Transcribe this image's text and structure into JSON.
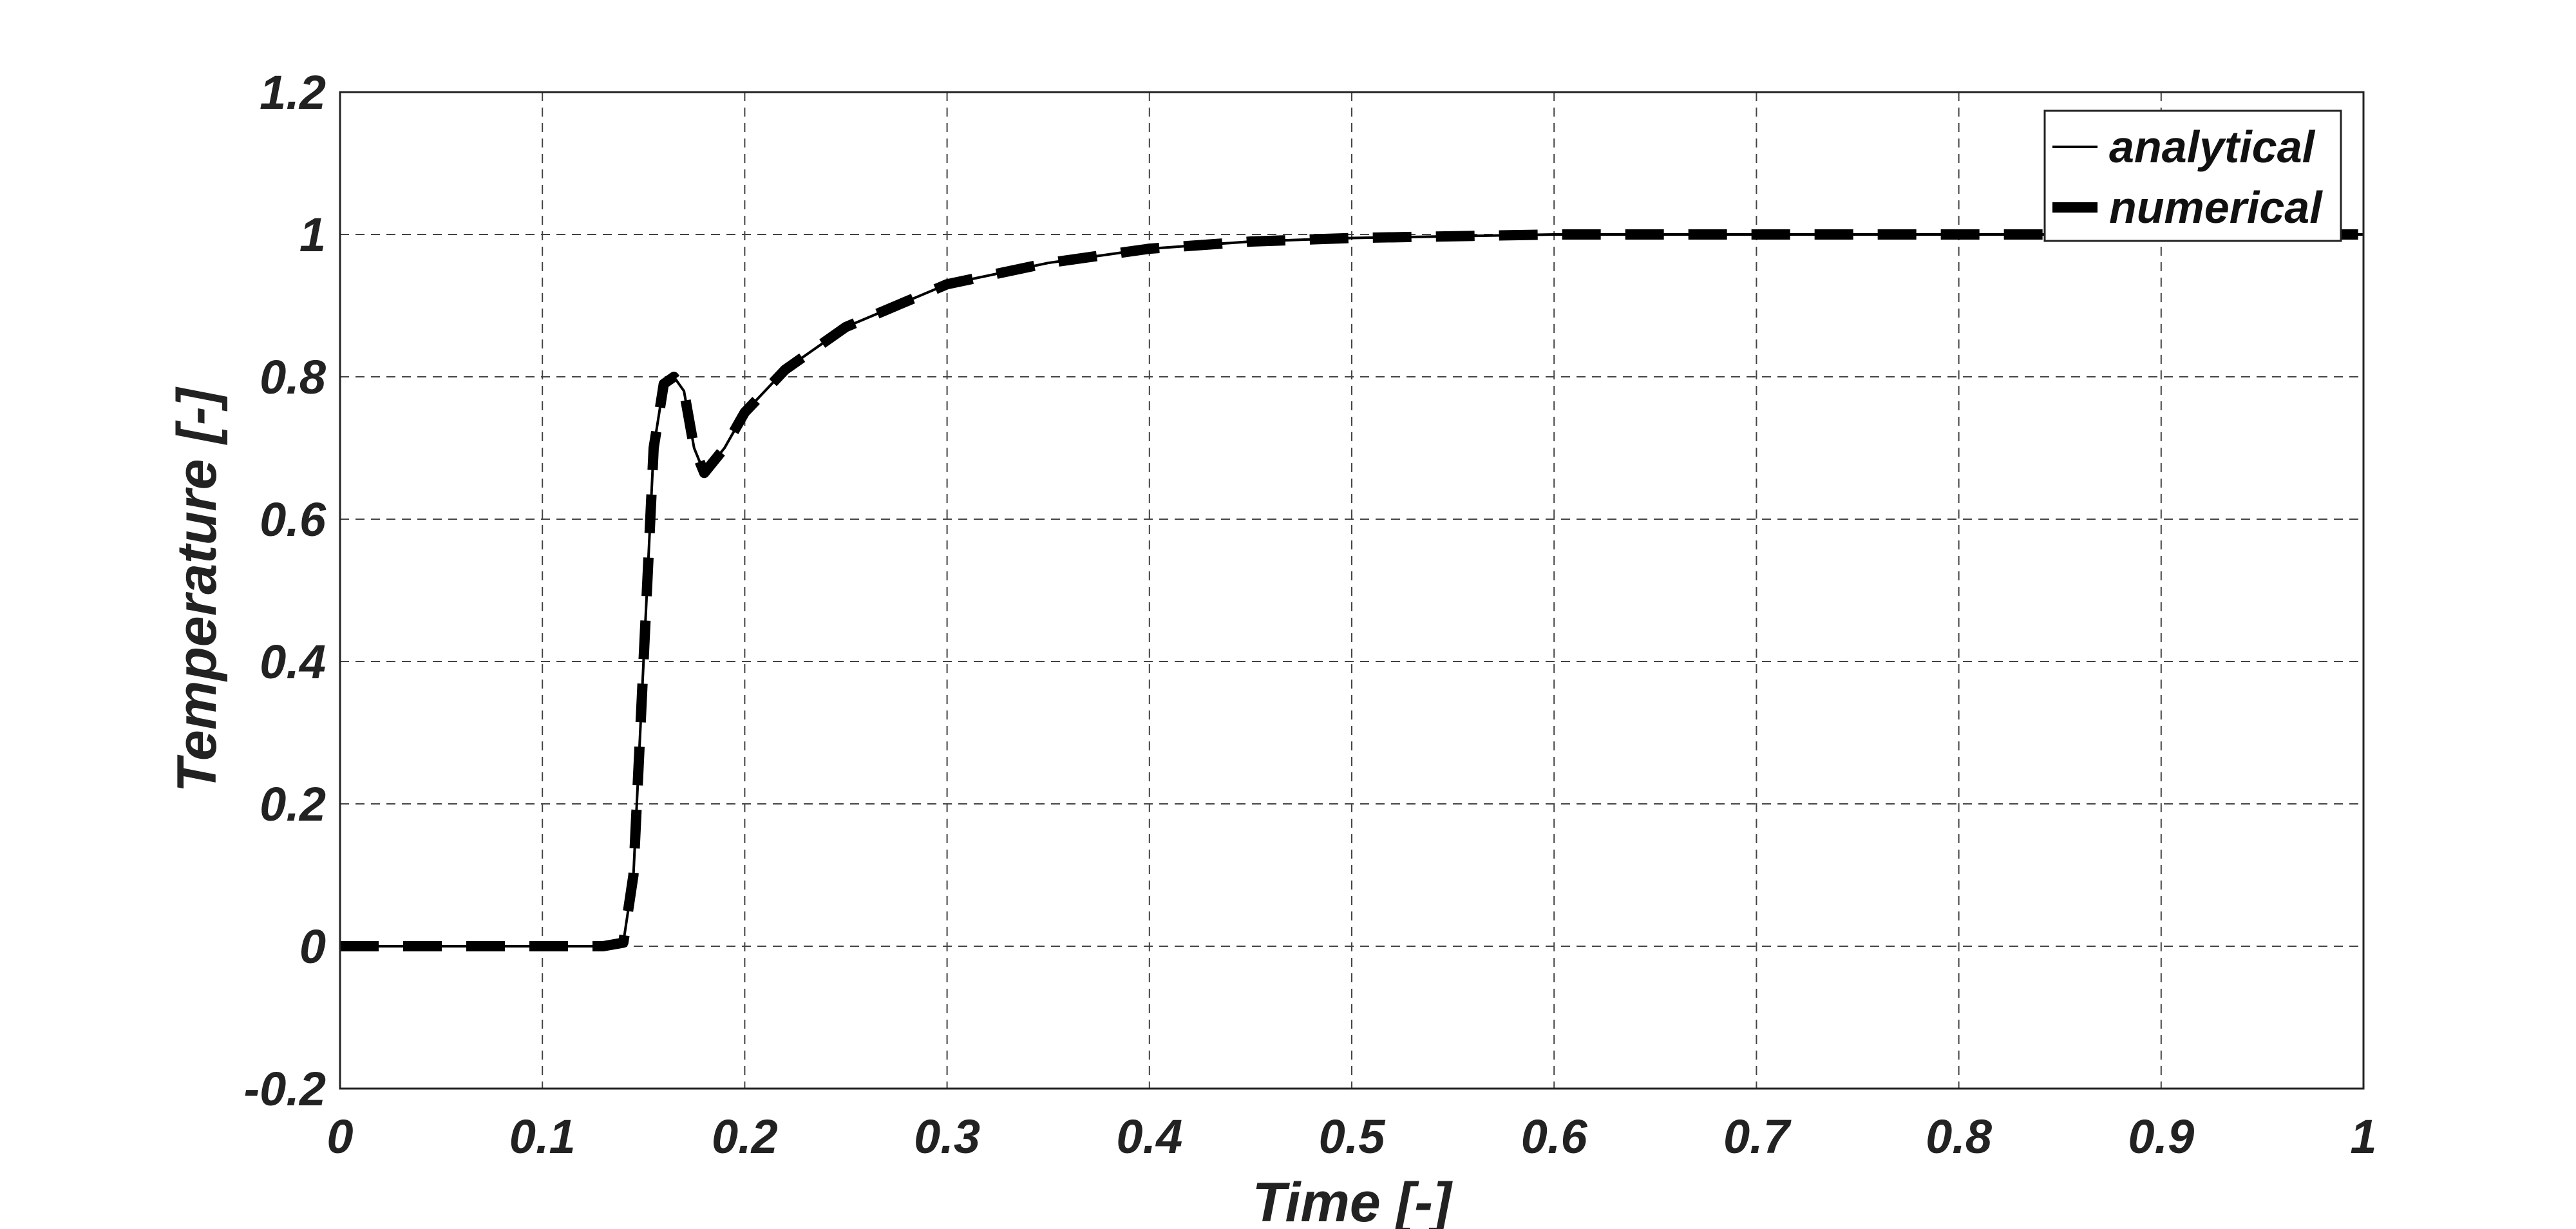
{
  "chart_data": {
    "type": "line",
    "title": "",
    "xlabel": "Time [-]",
    "ylabel": "Temperature [-]",
    "xlim": [
      0,
      1
    ],
    "ylim": [
      -0.2,
      1.2
    ],
    "xticks": [
      0,
      0.1,
      0.2,
      0.3,
      0.4,
      0.5,
      0.6,
      0.7,
      0.8,
      0.9,
      1
    ],
    "xtick_labels": [
      "0",
      "0.1",
      "0.2",
      "0.3",
      "0.4",
      "0.5",
      "0.6",
      "0.7",
      "0.8",
      "0.9",
      "1"
    ],
    "yticks": [
      -0.2,
      0,
      0.2,
      0.4,
      0.6,
      0.8,
      1,
      1.2
    ],
    "ytick_labels": [
      "-0.2",
      "0",
      "0.2",
      "0.4",
      "0.6",
      "0.8",
      "1",
      "1.2"
    ],
    "grid": true,
    "grid_style": "dashed",
    "legend_position": "top-right",
    "series": [
      {
        "name": "analytical",
        "style": "solid-thin",
        "color": "#000000",
        "x": [
          0,
          0.05,
          0.1,
          0.13,
          0.14,
          0.145,
          0.15,
          0.155,
          0.16,
          0.165,
          0.17,
          0.175,
          0.18,
          0.19,
          0.2,
          0.22,
          0.25,
          0.3,
          0.35,
          0.4,
          0.45,
          0.5,
          0.6,
          0.7,
          0.8,
          0.9,
          1.0
        ],
        "y": [
          0,
          0,
          0,
          0,
          0.005,
          0.1,
          0.4,
          0.7,
          0.79,
          0.8,
          0.78,
          0.7,
          0.665,
          0.7,
          0.75,
          0.81,
          0.87,
          0.93,
          0.96,
          0.98,
          0.99,
          0.995,
          1.0,
          1.0,
          1.0,
          1.0,
          1.0
        ]
      },
      {
        "name": "numerical",
        "style": "dashed-thick",
        "color": "#000000",
        "x": [
          0,
          0.05,
          0.1,
          0.13,
          0.14,
          0.145,
          0.15,
          0.155,
          0.16,
          0.165,
          0.17,
          0.175,
          0.18,
          0.19,
          0.2,
          0.22,
          0.25,
          0.3,
          0.35,
          0.4,
          0.45,
          0.5,
          0.6,
          0.7,
          0.8,
          0.9,
          1.0
        ],
        "y": [
          0,
          0,
          0,
          0,
          0.005,
          0.1,
          0.4,
          0.7,
          0.79,
          0.8,
          0.78,
          0.7,
          0.665,
          0.7,
          0.75,
          0.81,
          0.87,
          0.93,
          0.96,
          0.98,
          0.99,
          0.995,
          1.0,
          1.0,
          1.0,
          1.0,
          1.0
        ]
      }
    ]
  }
}
